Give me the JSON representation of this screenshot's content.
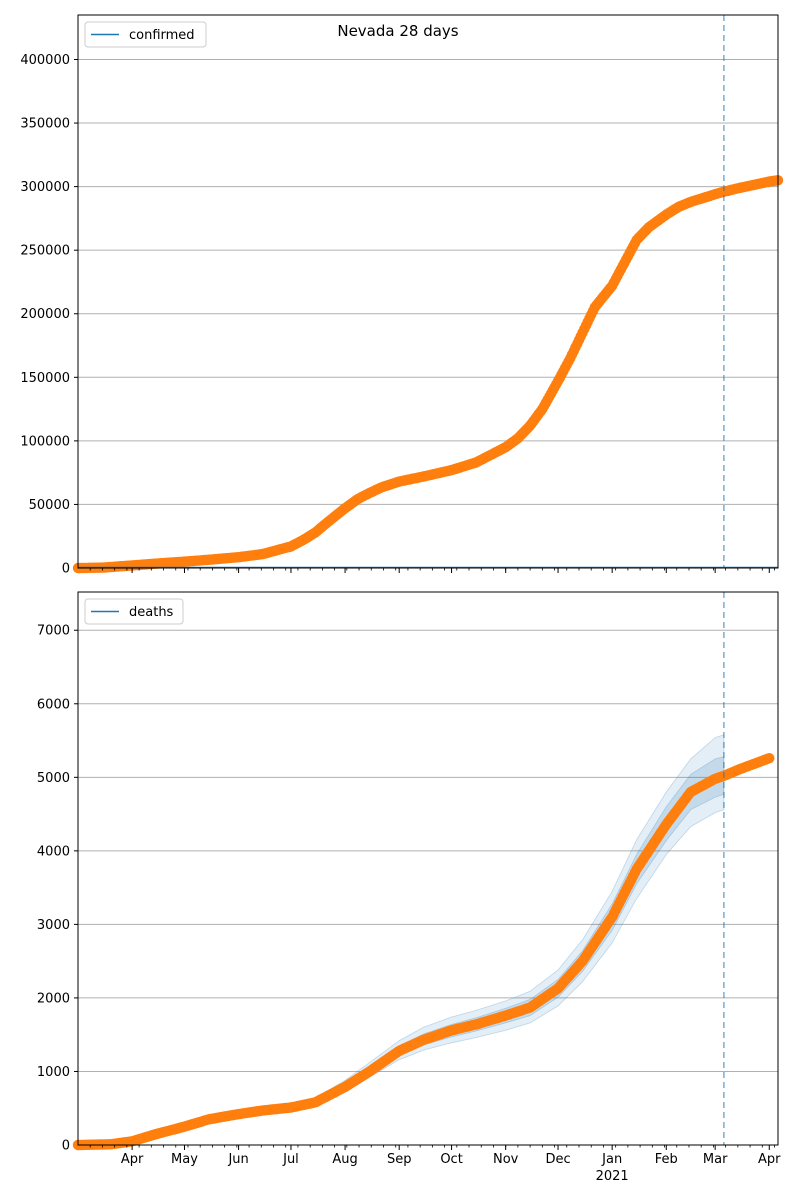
{
  "title": "Nevada 28 days",
  "colors": {
    "observed": "#ff7f0e",
    "legend_line": "#1f77b4",
    "band": "#1f77b4",
    "forecast_marker": "#1f77b4",
    "grid": "#b0b0b0"
  },
  "chart_data": [
    {
      "type": "scatter",
      "panel": "top",
      "legend": {
        "label": "confirmed",
        "placement": "top-left"
      },
      "ylim": [
        0,
        435000
      ],
      "yticks": [
        0,
        50000,
        100000,
        150000,
        200000,
        250000,
        300000,
        350000,
        400000
      ],
      "ytick_labels": [
        "0",
        "50000",
        "100000",
        "150000",
        "200000",
        "250000",
        "300000",
        "350000",
        "400000"
      ],
      "grid_y": true,
      "forecast_start": "2021-03-06",
      "series_observed_points": [
        [
          "2020-03-01",
          0
        ],
        [
          "2020-03-15",
          300
        ],
        [
          "2020-04-01",
          2000
        ],
        [
          "2020-04-15",
          3500
        ],
        [
          "2020-05-01",
          5000
        ],
        [
          "2020-05-15",
          6500
        ],
        [
          "2020-06-01",
          8500
        ],
        [
          "2020-06-15",
          11000
        ],
        [
          "2020-07-01",
          17000
        ],
        [
          "2020-07-08",
          22000
        ],
        [
          "2020-07-15",
          28000
        ],
        [
          "2020-07-22",
          36000
        ],
        [
          "2020-08-01",
          47000
        ],
        [
          "2020-08-08",
          54000
        ],
        [
          "2020-08-15",
          59000
        ],
        [
          "2020-08-22",
          63500
        ],
        [
          "2020-09-01",
          68000
        ],
        [
          "2020-09-15",
          72000
        ],
        [
          "2020-10-01",
          77000
        ],
        [
          "2020-10-15",
          83000
        ],
        [
          "2020-11-01",
          95000
        ],
        [
          "2020-11-08",
          102000
        ],
        [
          "2020-11-15",
          112000
        ],
        [
          "2020-11-22",
          125000
        ],
        [
          "2020-12-01",
          147000
        ],
        [
          "2020-12-08",
          165000
        ],
        [
          "2020-12-15",
          185000
        ],
        [
          "2020-12-22",
          205000
        ],
        [
          "2021-01-01",
          222000
        ],
        [
          "2021-01-08",
          240000
        ],
        [
          "2021-01-15",
          258000
        ],
        [
          "2021-01-22",
          268000
        ],
        [
          "2021-02-01",
          278000
        ],
        [
          "2021-02-08",
          284000
        ],
        [
          "2021-02-15",
          288000
        ],
        [
          "2021-02-22",
          291000
        ],
        [
          "2021-03-01",
          294000
        ],
        [
          "2021-03-06",
          296000
        ],
        [
          "2021-03-15",
          299000
        ],
        [
          "2021-03-22",
          301000
        ],
        [
          "2021-04-01",
          304000
        ],
        [
          "2021-04-06",
          305000
        ]
      ]
    },
    {
      "type": "scatter",
      "panel": "bottom",
      "legend": {
        "label": "deaths",
        "placement": "top-left"
      },
      "ylim": [
        0,
        7520
      ],
      "yticks": [
        0,
        1000,
        2000,
        3000,
        4000,
        5000,
        6000,
        7000
      ],
      "ytick_labels": [
        "0",
        "1000",
        "2000",
        "3000",
        "4000",
        "5000",
        "6000",
        "7000"
      ],
      "grid_y": true,
      "forecast_start": "2021-03-06",
      "series_observed_points": [
        [
          "2020-03-01",
          0
        ],
        [
          "2020-03-20",
          10
        ],
        [
          "2020-04-01",
          50
        ],
        [
          "2020-04-15",
          150
        ],
        [
          "2020-05-01",
          250
        ],
        [
          "2020-05-15",
          350
        ],
        [
          "2020-06-01",
          420
        ],
        [
          "2020-06-15",
          470
        ],
        [
          "2020-07-01",
          510
        ],
        [
          "2020-07-15",
          580
        ],
        [
          "2020-08-01",
          790
        ],
        [
          "2020-08-15",
          1000
        ],
        [
          "2020-09-01",
          1280
        ],
        [
          "2020-09-15",
          1430
        ],
        [
          "2020-10-01",
          1560
        ],
        [
          "2020-10-15",
          1640
        ],
        [
          "2020-11-01",
          1760
        ],
        [
          "2020-11-15",
          1870
        ],
        [
          "2020-12-01",
          2130
        ],
        [
          "2020-12-15",
          2500
        ],
        [
          "2021-01-01",
          3100
        ],
        [
          "2021-01-15",
          3750
        ],
        [
          "2021-02-01",
          4360
        ],
        [
          "2021-02-15",
          4800
        ],
        [
          "2021-03-01",
          4980
        ],
        [
          "2021-03-06",
          5020
        ],
        [
          "2021-03-15",
          5110
        ],
        [
          "2021-04-01",
          5260
        ]
      ],
      "uncertainty_bands": [
        {
          "level": "outer",
          "points": [
            [
              "2020-07-01",
              470,
              560
            ],
            [
              "2020-07-15",
              540,
              640
            ],
            [
              "2020-08-01",
              720,
              880
            ],
            [
              "2020-08-15",
              920,
              1120
            ],
            [
              "2020-09-01",
              1160,
              1420
            ],
            [
              "2020-09-15",
              1290,
              1600
            ],
            [
              "2020-10-01",
              1390,
              1740
            ],
            [
              "2020-10-15",
              1460,
              1830
            ],
            [
              "2020-11-01",
              1560,
              1960
            ],
            [
              "2020-11-15",
              1660,
              2090
            ],
            [
              "2020-12-01",
              1890,
              2380
            ],
            [
              "2020-12-15",
              2220,
              2790
            ],
            [
              "2021-01-01",
              2750,
              3450
            ],
            [
              "2021-01-15",
              3350,
              4150
            ],
            [
              "2021-02-01",
              3950,
              4800
            ],
            [
              "2021-02-15",
              4330,
              5250
            ],
            [
              "2021-03-01",
              4520,
              5540
            ],
            [
              "2021-03-06",
              4560,
              5580
            ]
          ]
        },
        {
          "level": "inner",
          "points": [
            [
              "2020-07-01",
              490,
              535
            ],
            [
              "2020-07-15",
              560,
              610
            ],
            [
              "2020-08-01",
              755,
              835
            ],
            [
              "2020-08-15",
              960,
              1060
            ],
            [
              "2020-09-01",
              1220,
              1350
            ],
            [
              "2020-09-15",
              1360,
              1510
            ],
            [
              "2020-10-01",
              1470,
              1640
            ],
            [
              "2020-10-15",
              1550,
              1730
            ],
            [
              "2020-11-01",
              1660,
              1860
            ],
            [
              "2020-11-15",
              1760,
              1980
            ],
            [
              "2020-12-01",
              2010,
              2250
            ],
            [
              "2020-12-15",
              2360,
              2640
            ],
            [
              "2021-01-01",
              2920,
              3280
            ],
            [
              "2021-01-15",
              3550,
              3950
            ],
            [
              "2021-02-01",
              4140,
              4600
            ],
            [
              "2021-02-15",
              4560,
              5040
            ],
            [
              "2021-03-01",
              4730,
              5250
            ],
            [
              "2021-03-06",
              4770,
              5280
            ]
          ]
        }
      ]
    }
  ],
  "x_axis": {
    "range": [
      "2020-03-01",
      "2021-04-06"
    ],
    "major_ticks": [
      {
        "date": "2020-04-01",
        "label": "Apr"
      },
      {
        "date": "2020-05-01",
        "label": "May"
      },
      {
        "date": "2020-06-01",
        "label": "Jun"
      },
      {
        "date": "2020-07-01",
        "label": "Jul"
      },
      {
        "date": "2020-08-01",
        "label": "Aug"
      },
      {
        "date": "2020-09-01",
        "label": "Sep"
      },
      {
        "date": "2020-10-01",
        "label": "Oct"
      },
      {
        "date": "2020-11-01",
        "label": "Nov"
      },
      {
        "date": "2020-12-01",
        "label": "Dec"
      },
      {
        "date": "2021-01-01",
        "label": "Jan"
      },
      {
        "date": "2021-02-01",
        "label": "Feb"
      },
      {
        "date": "2021-03-01",
        "label": "Mar"
      },
      {
        "date": "2021-04-01",
        "label": "Apr"
      }
    ],
    "year_label": "2021"
  }
}
